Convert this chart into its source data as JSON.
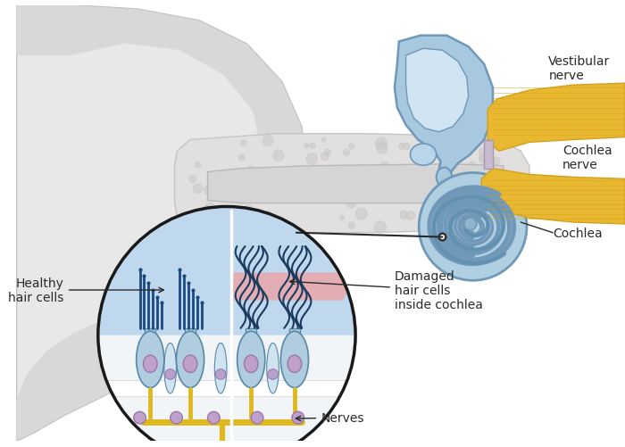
{
  "bg_color": "#ffffff",
  "labels": {
    "vestibular_nerve": "Vestibular\nnerve",
    "cochlea_nerve": "Cochlea\nnerve",
    "cochlea": "Cochlea",
    "healthy_hair": "Healthy\nhair cells",
    "damaged_hair": "Damaged\nhair cells\ninside cochlea",
    "nerves": "Nerves"
  },
  "label_fontsize": 10,
  "label_color": "#2a2a2a",
  "ear_outer_color": "#e8e8e8",
  "ear_outer_edge": "#c0c0c0",
  "ear_inner_color": "#d4d4d4",
  "bone_color": "#e0dede",
  "bone_texture_color": "#c8c8c8",
  "cochlea_blue": "#a8c8e0",
  "cochlea_edge": "#7098b8",
  "nerve_gold": "#d4a020",
  "nerve_gold2": "#e8b830",
  "cell_blue": "#b0ccdf",
  "cell_edge": "#5888a8",
  "nucleus_color": "#c0a0c8",
  "nucleus_edge": "#9878a8",
  "support_color": "#d0e4f0",
  "hair_healthy": "#1a4a80",
  "hair_damaged": "#1a3a60",
  "pink_color": "#f0a0a0",
  "nerve_fiber": "#e0b820",
  "circle_bg": "#f5f8fa",
  "fluid_blue": "#c0d8ee",
  "circle_edge": "#1a1a1a"
}
